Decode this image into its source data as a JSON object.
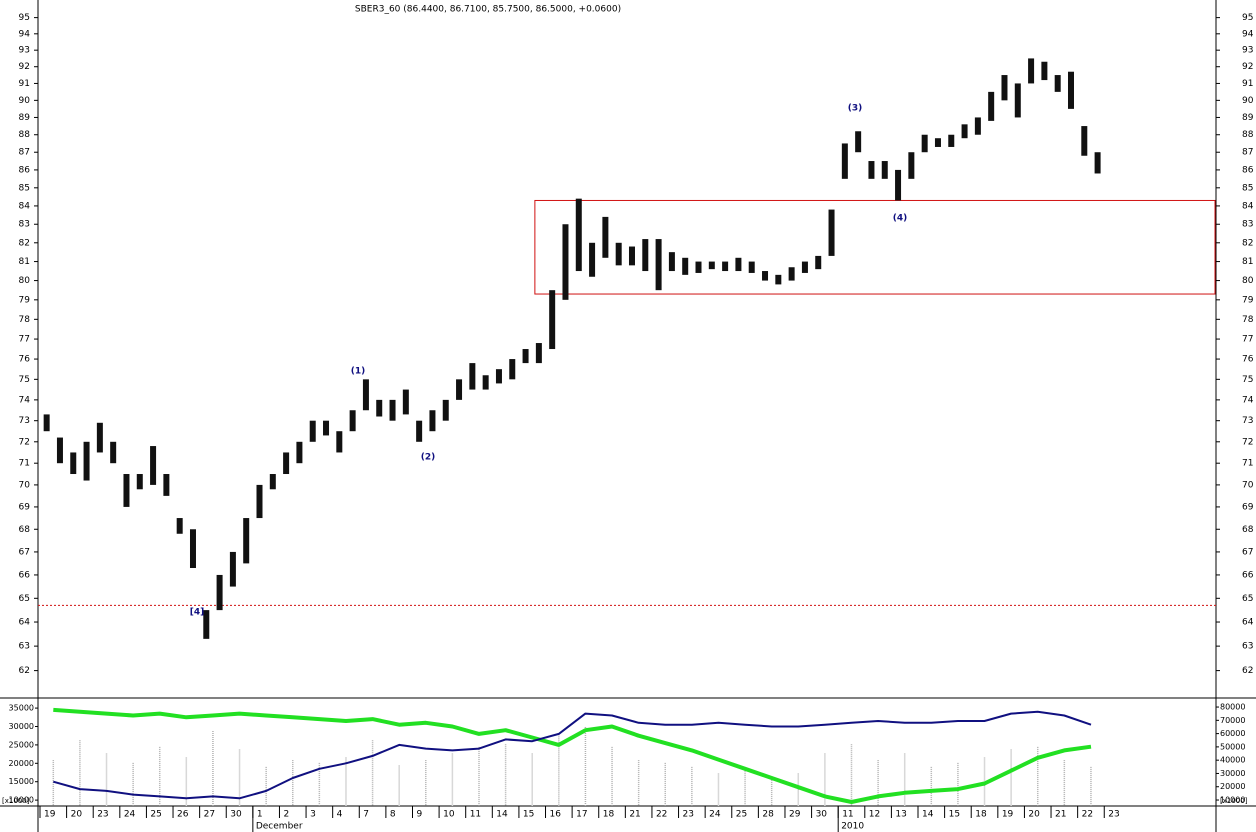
{
  "chart_data": {
    "type": "ohlc",
    "title": "SBER3_60 (86.4400, 86.7100, 85.7500, 86.5000, +0.0600)",
    "log_scale": true,
    "xlim": [
      0,
      44.2
    ],
    "ylim": [
      60.9,
      96.1
    ],
    "yticks": [
      62,
      63,
      64,
      65,
      66,
      67,
      68,
      69,
      70,
      71,
      72,
      73,
      74,
      75,
      76,
      77,
      78,
      79,
      80,
      81,
      82,
      83,
      84,
      85,
      86,
      87,
      88,
      89,
      90,
      91,
      92,
      93,
      94,
      95
    ],
    "categories": [
      "19",
      "20",
      "23",
      "24",
      "25",
      "26",
      "27",
      "30",
      "1",
      "2",
      "3",
      "4",
      "7",
      "8",
      "9",
      "10",
      "11",
      "14",
      "15",
      "16",
      "17",
      "18",
      "21",
      "22",
      "23",
      "24",
      "25",
      "28",
      "29",
      "30",
      "11",
      "12",
      "13",
      "14",
      "15",
      "18",
      "19",
      "20",
      "21",
      "22",
      "23"
    ],
    "period_labels": [
      {
        "x": 8,
        "label": "December"
      },
      {
        "x": 30,
        "label": "2010"
      }
    ],
    "color": "#111111",
    "x": [
      0.25,
      0.75,
      1.25,
      1.75,
      2.25,
      2.75,
      3.25,
      3.75,
      4.25,
      4.75,
      5.25,
      5.75,
      6.25,
      6.75,
      7.25,
      7.75,
      8.25,
      8.75,
      9.25,
      9.75,
      10.25,
      10.75,
      11.25,
      11.75,
      12.25,
      12.75,
      13.25,
      13.75,
      14.25,
      14.75,
      15.25,
      15.75,
      16.25,
      16.75,
      17.25,
      17.75,
      18.25,
      18.75,
      19.25,
      19.75,
      20.25,
      20.75,
      21.25,
      21.75,
      22.25,
      22.75,
      23.25,
      23.75,
      24.25,
      24.75,
      25.25,
      25.75,
      26.25,
      26.75,
      27.25,
      27.75,
      28.25,
      28.75,
      29.25,
      29.75,
      30.25,
      30.75,
      31.25,
      31.75,
      32.25,
      32.75,
      33.25,
      33.75,
      34.25,
      34.75,
      35.25,
      35.75,
      36.25,
      36.75,
      37.25,
      37.75,
      38.25,
      38.75,
      39.25,
      39.75
    ],
    "high": [
      73.3,
      72.2,
      71.5,
      72,
      72.9,
      72,
      70.5,
      70.5,
      71.8,
      70.5,
      68.5,
      68,
      64.5,
      66,
      67,
      68.5,
      70,
      70.5,
      71.5,
      72,
      73,
      73,
      72.5,
      73.5,
      75,
      74,
      74,
      74.5,
      73,
      73.5,
      74,
      75,
      75.8,
      75.2,
      75.5,
      76,
      76.5,
      76.8,
      79.5,
      83,
      84.4,
      82,
      83.4,
      82,
      81.8,
      82.2,
      82.2,
      81.5,
      81.2,
      81,
      81,
      81,
      81.2,
      81,
      80.5,
      80.3,
      80.7,
      81,
      81.3,
      83.8,
      87.5,
      88.2,
      86.5,
      86.5,
      86,
      87,
      88,
      87.8,
      88,
      88.6,
      89,
      90.5,
      91.5,
      91,
      92.5,
      92.3,
      91.5,
      91.7,
      88.5,
      87
    ],
    "low": [
      72.5,
      71,
      70.5,
      70.2,
      71.5,
      71,
      69,
      69.8,
      70,
      69.5,
      67.8,
      66.3,
      63.3,
      64.5,
      65.5,
      66.5,
      68.5,
      69.8,
      70.5,
      71,
      72,
      72.3,
      71.5,
      72.5,
      73.5,
      73.2,
      73,
      73.3,
      72,
      72.5,
      73,
      74,
      74.5,
      74.5,
      74.8,
      75,
      75.8,
      75.8,
      76.5,
      79,
      80.5,
      80.2,
      81.2,
      80.8,
      80.8,
      80.5,
      79.5,
      80.5,
      80.3,
      80.4,
      80.6,
      80.5,
      80.5,
      80.4,
      80,
      79.8,
      80,
      80.4,
      80.6,
      81.3,
      85.5,
      87,
      85.5,
      85.5,
      84.3,
      85.5,
      87,
      87.3,
      87.3,
      87.8,
      88,
      88.8,
      90,
      89,
      91,
      91.2,
      90.5,
      89.5,
      86.8,
      85.8
    ],
    "zone": {
      "from": 79.3,
      "to": 84.3,
      "x_from": 18.6,
      "color": "#d01010"
    },
    "level": {
      "value": 64.7,
      "color": "#d01010"
    },
    "annotations": [
      "(1)",
      "(2)",
      "(3)",
      "(4)",
      "[4]"
    ],
    "annotation_color": "#101080",
    "indicator": {
      "unit_label": "[x1000]",
      "ylim": [
        8400,
        37200
      ],
      "yticks": [
        10000,
        15000,
        20000,
        25000,
        30000,
        35000
      ],
      "y2lim": [
        5500,
        85300
      ],
      "y2ticks": [
        10000,
        20000,
        30000,
        40000,
        50000,
        60000,
        70000,
        80000
      ],
      "x": [
        0.5,
        1.5,
        2.5,
        3.5,
        4.5,
        5.5,
        6.5,
        7.5,
        8.5,
        9.5,
        10.5,
        11.5,
        12.5,
        13.5,
        14.5,
        15.5,
        16.5,
        17.5,
        18.5,
        19.5,
        20.5,
        21.5,
        22.5,
        23.5,
        24.5,
        25.5,
        26.5,
        27.5,
        28.5,
        29.5,
        30.5,
        31.5,
        32.5,
        33.5,
        34.5,
        35.5,
        36.5,
        37.5,
        38.5,
        39.5
      ],
      "series": [
        {
          "type": "bar",
          "color": "#b0b0b0",
          "axis": "y2",
          "values": [
            40000,
            55000,
            45000,
            38000,
            50000,
            42000,
            62000,
            48000,
            35000,
            40000,
            38000,
            42000,
            55000,
            36000,
            40000,
            45000,
            50000,
            52000,
            45000,
            60000,
            65000,
            50000,
            40000,
            38000,
            35000,
            30000,
            32000,
            28000,
            30000,
            45000,
            52000,
            40000,
            45000,
            35000,
            38000,
            42000,
            48000,
            50000,
            40000,
            35000
          ]
        },
        {
          "type": "line",
          "color": "#22e022",
          "width": 4,
          "values": [
            34500,
            34000,
            33500,
            33000,
            33500,
            32500,
            33000,
            33500,
            33000,
            32500,
            32000,
            31500,
            32000,
            30500,
            31000,
            30000,
            28000,
            29000,
            27000,
            25000,
            29000,
            30000,
            27500,
            25500,
            23500,
            21000,
            18500,
            16000,
            13500,
            11000,
            9500,
            11000,
            12000,
            12500,
            13000,
            14500,
            18000,
            21500,
            23500,
            24500
          ]
        },
        {
          "type": "line",
          "color": "#101080",
          "width": 2,
          "values": [
            15000,
            13000,
            12500,
            11500,
            11000,
            10500,
            11000,
            10500,
            12500,
            16000,
            18500,
            20000,
            22000,
            25000,
            24000,
            23500,
            24000,
            26500,
            26000,
            28000,
            33500,
            33000,
            31000,
            30500,
            30500,
            31000,
            30500,
            30000,
            30000,
            30500,
            31000,
            31500,
            31000,
            31000,
            31500,
            31500,
            33500,
            34000,
            33000,
            30500
          ]
        }
      ]
    }
  }
}
